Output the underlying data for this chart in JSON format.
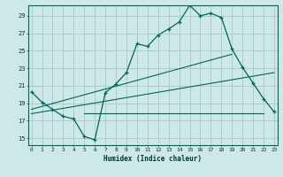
{
  "xlabel": "Humidex (Indice chaleur)",
  "bg_color": "#cce8e8",
  "grid_color": "#aacccc",
  "line_color": "#006655",
  "x_ticks": [
    0,
    1,
    2,
    3,
    4,
    5,
    6,
    7,
    8,
    9,
    10,
    11,
    12,
    13,
    14,
    15,
    16,
    17,
    18,
    19,
    20,
    21,
    22,
    23
  ],
  "y_ticks": [
    15,
    17,
    19,
    21,
    23,
    25,
    27,
    29
  ],
  "xlim": [
    -0.3,
    23.3
  ],
  "ylim": [
    14.2,
    30.2
  ],
  "main_line": {
    "x": [
      0,
      1,
      2,
      3,
      4,
      5,
      6,
      7,
      8,
      9,
      10,
      11,
      12,
      13,
      14,
      15,
      16,
      17,
      18,
      19,
      20,
      21,
      22,
      23
    ],
    "y": [
      20.3,
      19.1,
      18.3,
      17.5,
      17.2,
      15.2,
      14.8,
      20.2,
      21.2,
      22.5,
      25.8,
      25.5,
      26.8,
      27.5,
      28.3,
      30.2,
      29.0,
      29.3,
      28.8,
      25.2,
      23.1,
      21.3,
      19.5,
      18.0
    ]
  },
  "trend_line1": {
    "x": [
      0,
      19
    ],
    "y": [
      18.3,
      24.6
    ]
  },
  "trend_line2": {
    "x": [
      0,
      23
    ],
    "y": [
      17.8,
      22.5
    ]
  },
  "horiz_line": {
    "x": [
      5,
      22
    ],
    "y": [
      17.8,
      17.8
    ]
  }
}
